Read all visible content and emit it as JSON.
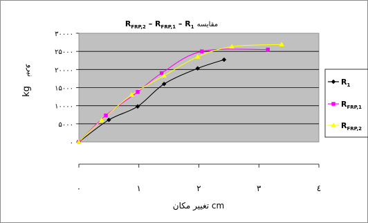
{
  "chart_data": {
    "type": "line",
    "title": {
      "main": "R",
      "sub2": "FRP,2",
      "dash1": " – ",
      "main2": "R",
      "sub1": "FRP,1",
      "dash2": " – ",
      "main3": "R",
      "sub0": "1",
      "persian": "مقایسه"
    },
    "xlabel": "تغییر مکان cm",
    "ylabel_persian": "نیرو",
    "ylabel_unit": "kg",
    "xlim": [
      0,
      4
    ],
    "ylim": [
      0,
      30000
    ],
    "x_ticks": [
      {
        "value": 0,
        "label": "۰"
      },
      {
        "value": 1,
        "label": "۱"
      },
      {
        "value": 2,
        "label": "۲"
      },
      {
        "value": 3,
        "label": "۳"
      },
      {
        "value": 4,
        "label": "٤"
      }
    ],
    "y_ticks": [
      {
        "value": 0,
        "label": "۰"
      },
      {
        "value": 5000,
        "label": "۵۰۰۰"
      },
      {
        "value": 10000,
        "label": "۱۰۰۰۰"
      },
      {
        "value": 15000,
        "label": "۱۵۰۰۰"
      },
      {
        "value": 20000,
        "label": "۲۰۰۰۰"
      },
      {
        "value": 25000,
        "label": "۲۵۰۰۰"
      },
      {
        "value": 30000,
        "label": "۳۰۰۰۰"
      }
    ],
    "grid": "horizontal",
    "plot_background": "#c0c0c0",
    "legend_position": "right",
    "series": [
      {
        "name": "R",
        "sub": "1",
        "color": "#000000",
        "marker": "diamond",
        "points": [
          [
            0,
            0
          ],
          [
            0.5,
            6100
          ],
          [
            0.98,
            9800
          ],
          [
            1.42,
            16000
          ],
          [
            1.98,
            20300
          ],
          [
            2.42,
            22700
          ]
        ]
      },
      {
        "name": "R",
        "sub": "FRP,1",
        "color": "#ff00ff",
        "marker": "square",
        "points": [
          [
            0,
            0
          ],
          [
            0.45,
            7300
          ],
          [
            0.98,
            13800
          ],
          [
            1.38,
            19000
          ],
          [
            2.05,
            25000
          ],
          [
            3.15,
            25500
          ]
        ]
      },
      {
        "name": "R",
        "sub": "FRP,2",
        "color": "#ffff00",
        "marker": "triangle",
        "points": [
          [
            0,
            0
          ],
          [
            0.38,
            6000
          ],
          [
            0.88,
            13000
          ],
          [
            1.42,
            18300
          ],
          [
            1.98,
            23500
          ],
          [
            2.55,
            26300
          ],
          [
            3.38,
            26900
          ]
        ]
      }
    ]
  }
}
